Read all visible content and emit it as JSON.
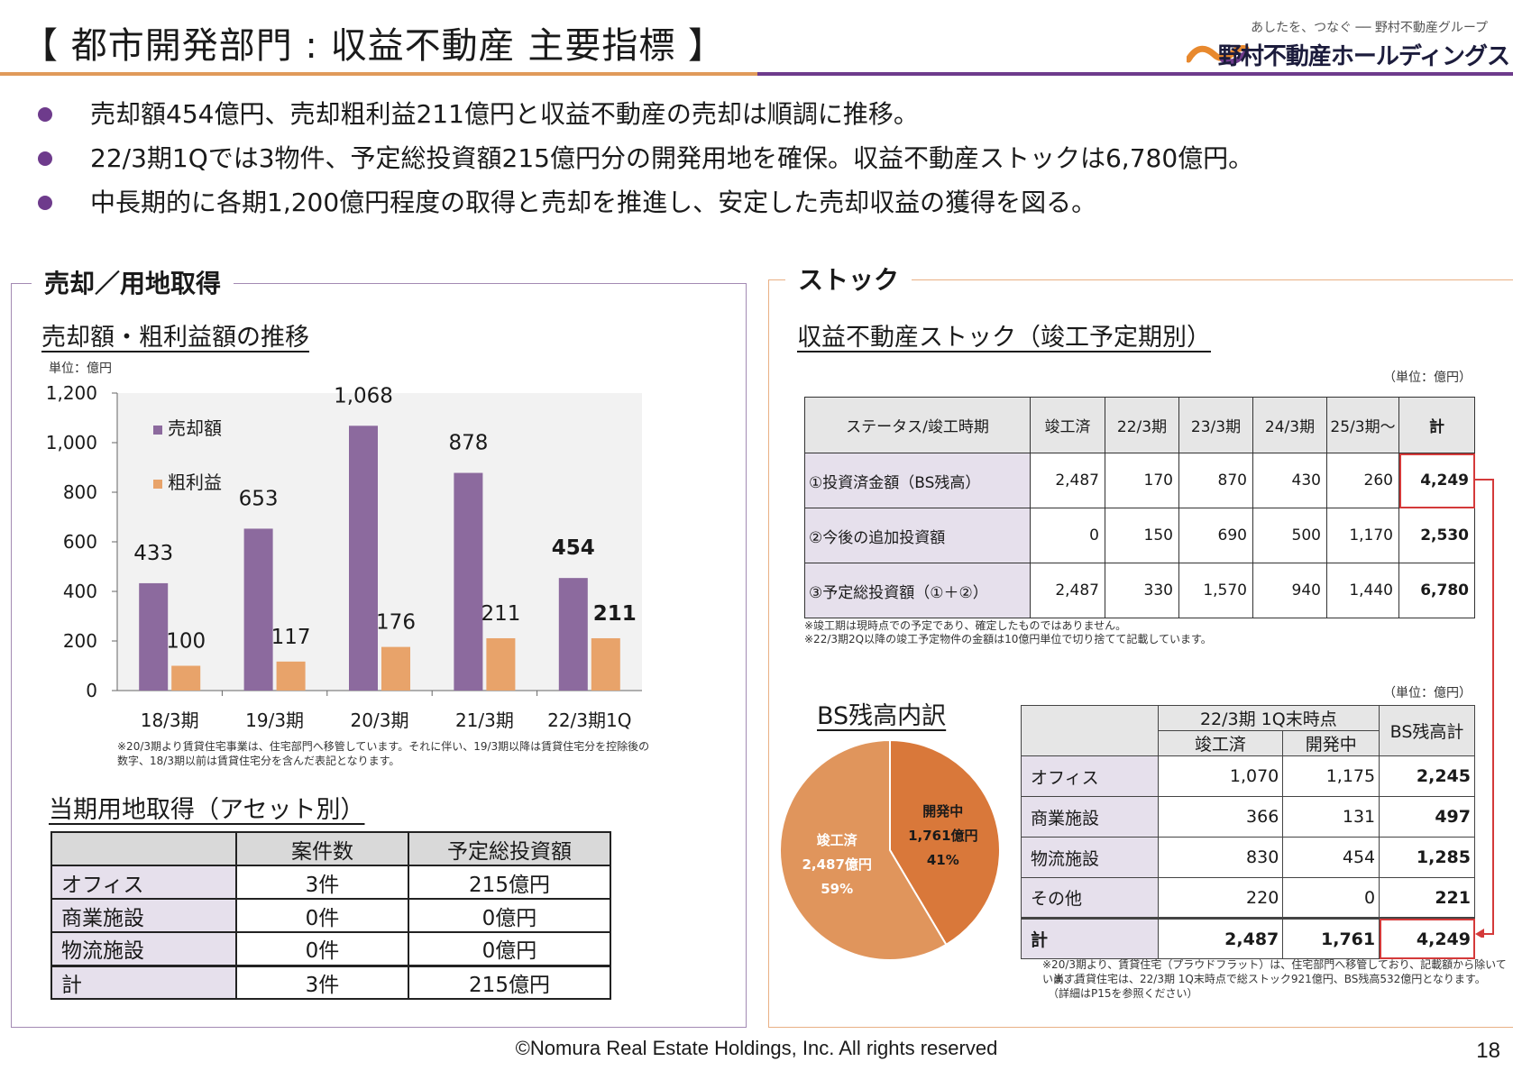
{
  "header": {
    "title": "【 都市開発部門 : 収益不動産 主要指標 】",
    "logo_tagline": "あしたを、つなぐ ── 野村不動産グループ",
    "logo_name": "野村不動産ホールディングス"
  },
  "bullets": [
    "売却額454億円、売却粗利益211億円と収益不動産の売却は順調に推移。",
    "22/3期1Qでは3物件、予定総投資額215億円分の開発用地を確保。収益不動産ストックは6,780億円。",
    "中長期的に各期1,200億円程度の取得と売却を推進し、安定した売却収益の獲得を図る。"
  ],
  "left_panel": {
    "heading": "売却／用地取得",
    "chart_title": "売却額・粗利益額の推移",
    "unit": "単位：億円",
    "chart_note": "※20/3期より賃貸住宅事業は、住宅部門へ移管しています。それに伴い、19/3期以降は賃貸住宅分を控除後の数字、18/3期以前は賃貸住宅分を含んだ表記となります。",
    "acq_title": "当期用地取得（アセット別）",
    "acq_table": {
      "headers": [
        "",
        "案件数",
        "予定総投資額"
      ],
      "rows": [
        [
          "オフィス",
          "3件",
          "215億円"
        ],
        [
          "商業施設",
          "0件",
          "0億円"
        ],
        [
          "物流施設",
          "0件",
          "0億円"
        ],
        [
          "計",
          "3件",
          "215億円"
        ]
      ]
    }
  },
  "right_panel": {
    "heading": "ストック",
    "stock_title": "収益不動産ストック（竣工予定期別）",
    "unit": "（単位：億円）",
    "stock_table": {
      "headers": [
        "ステータス/竣工時期",
        "竣工済",
        "22/3期",
        "23/3期",
        "24/3期",
        "25/3期～",
        "計"
      ],
      "rows": [
        [
          "①投資済金額（BS残高）",
          "2,487",
          "170",
          "870",
          "430",
          "260",
          "4,249"
        ],
        [
          "②今後の追加投資額",
          "0",
          "150",
          "690",
          "500",
          "1,170",
          "2,530"
        ],
        [
          "③予定総投資額（①＋②）",
          "2,487",
          "330",
          "1,570",
          "940",
          "1,440",
          "6,780"
        ]
      ]
    },
    "stock_note1": "※竣工期は現時点での予定であり、確定したものではありません。",
    "stock_note2": "※22/3期2Q以降の竣工予定物件の金額は10億円単位で切り捨てて記載しています。",
    "bs_title": "BS残高内訳",
    "bs_unit": "（単位：億円）",
    "bs_table": {
      "group_header": "22/3期 1Q末時点",
      "sub_headers": [
        "竣工済",
        "開発中"
      ],
      "total_header": "BS残高計",
      "rows": [
        [
          "オフィス",
          "1,070",
          "1,175",
          "2,245"
        ],
        [
          "商業施設",
          "366",
          "131",
          "497"
        ],
        [
          "物流施設",
          "830",
          "454",
          "1,285"
        ],
        [
          "その他",
          "220",
          "0",
          "221"
        ],
        [
          "計",
          "2,487",
          "1,761",
          "4,249"
        ]
      ]
    },
    "bs_note1": "※20/3期より、賃貸住宅（プラウドフラット）は、住宅部門へ移管しており、記載額から除いています。",
    "bs_note2": "尚、賃貸住宅は、22/3期 1Q末時点で総ストック921億円、BS残高532億円となります。",
    "bs_note3": "（詳細はP15を参照ください）"
  },
  "pie_chart": {
    "type": "pie",
    "slices": [
      {
        "label": "竣工済",
        "value_label": "2,487億円",
        "pct_label": "59%",
        "value": 2487,
        "color": "#e0955c"
      },
      {
        "label": "開発中",
        "value_label": "1,761億円",
        "pct_label": "41%",
        "value": 1761,
        "color": "#d9783a"
      }
    ]
  },
  "chart_data": {
    "type": "bar",
    "categories": [
      "18/3期",
      "19/3期",
      "20/3期",
      "21/3期",
      "22/3期1Q"
    ],
    "series": [
      {
        "name": "売却額",
        "values": [
          433,
          653,
          1068,
          878,
          454
        ],
        "color": "#8c6a9e"
      },
      {
        "name": "粗利益",
        "values": [
          100,
          117,
          176,
          211,
          211
        ],
        "color": "#e8a36a"
      }
    ],
    "ylim": [
      0,
      1200
    ],
    "yticks": [
      0,
      200,
      400,
      600,
      800,
      1000,
      1200
    ],
    "ytick_labels": [
      "0",
      "200",
      "400",
      "600",
      "800",
      "1,000",
      "1,200"
    ],
    "data_labels": {
      "売却額": [
        "433",
        "653",
        "1,068",
        "878",
        "454"
      ],
      "粗利益": [
        "100",
        "117",
        "176",
        "211",
        "211"
      ]
    },
    "legend_position": "top-left",
    "grid": false,
    "plot_background": "#f2f2f2"
  },
  "footer": {
    "copyright": "©Nomura Real Estate Holdings, Inc. All rights reserved",
    "page": "18"
  }
}
